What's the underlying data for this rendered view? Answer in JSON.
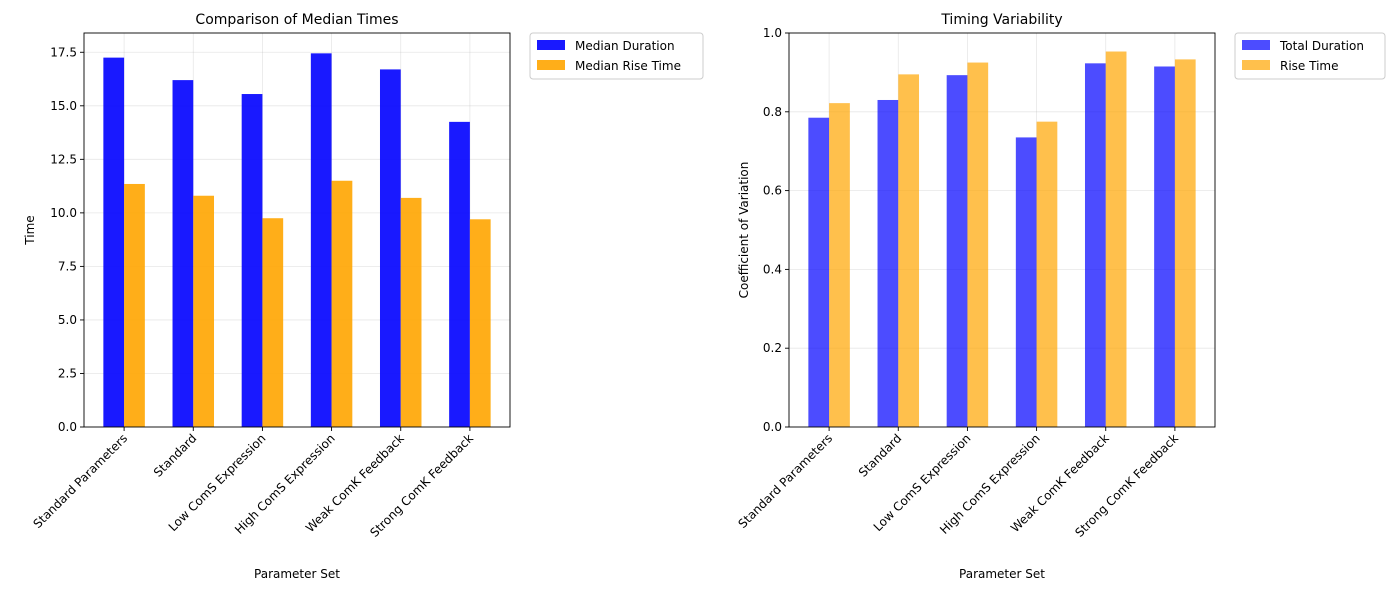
{
  "chart_data": [
    {
      "type": "bar",
      "title": "Comparison of Median Times",
      "xlabel": "Parameter Set",
      "ylabel": "Time",
      "categories": [
        "Standard Parameters",
        "Standard",
        "Low ComS Expression",
        "High ComS Expression",
        "Weak ComK Feedback",
        "Strong ComK Feedback"
      ],
      "series": [
        {
          "name": "Median Duration",
          "color": "#0000ff",
          "opacity": 0.9,
          "values": [
            17.25,
            16.2,
            15.55,
            17.45,
            16.7,
            14.25
          ]
        },
        {
          "name": "Median Rise Time",
          "color": "#ffa500",
          "opacity": 0.9,
          "values": [
            11.35,
            10.8,
            9.75,
            11.5,
            10.7,
            9.7
          ]
        }
      ],
      "ylim": [
        0,
        18.4
      ],
      "yticks": [
        "0.0",
        "2.5",
        "5.0",
        "7.5",
        "10.0",
        "12.5",
        "15.0",
        "17.5"
      ],
      "grid": true,
      "legend": "outside-upper-right"
    },
    {
      "type": "bar",
      "title": "Timing Variability",
      "xlabel": "Parameter Set",
      "ylabel": "Coefficient of Variation",
      "categories": [
        "Standard Parameters",
        "Standard",
        "Low ComS Expression",
        "High ComS Expression",
        "Weak ComK Feedback",
        "Strong ComK Feedback"
      ],
      "series": [
        {
          "name": "Total Duration",
          "color": "#0000ff",
          "opacity": 0.7,
          "values": [
            0.785,
            0.83,
            0.893,
            0.735,
            0.923,
            0.915
          ]
        },
        {
          "name": "Rise Time",
          "color": "#ffa500",
          "opacity": 0.7,
          "values": [
            0.822,
            0.895,
            0.925,
            0.775,
            0.953,
            0.933
          ]
        }
      ],
      "ylim": [
        0,
        1.0
      ],
      "yticks": [
        "0.0",
        "0.2",
        "0.4",
        "0.6",
        "0.8",
        "1.0"
      ],
      "grid": true,
      "legend": "outside-upper-right"
    }
  ]
}
